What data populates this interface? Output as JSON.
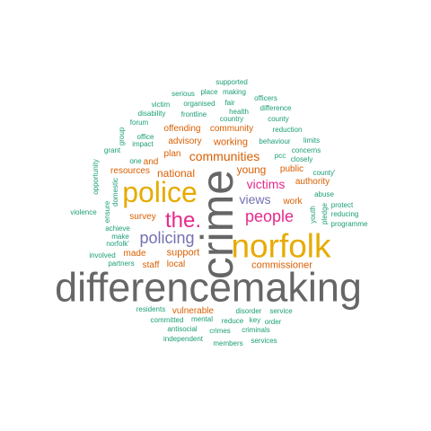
{
  "words": [
    {
      "text": "differencemaking",
      "color": "#666666"
    },
    {
      "text": "crime",
      "color": "#666666"
    },
    {
      "text": "norfolk",
      "color": "#e6ab02"
    },
    {
      "text": "police",
      "color": "#e6ab02"
    },
    {
      "text": "the.",
      "color": "#e7298a"
    },
    {
      "text": "people",
      "color": "#e7298a"
    },
    {
      "text": "policing",
      "color": "#7570b3"
    },
    {
      "text": "victims",
      "color": "#e7298a"
    },
    {
      "text": "communities",
      "color": "#d95f02"
    },
    {
      "text": "views",
      "color": "#7570b3"
    },
    {
      "text": "young",
      "color": "#d95f02"
    },
    {
      "text": "national",
      "color": "#d95f02"
    },
    {
      "text": "commissioner",
      "color": "#d95f02"
    },
    {
      "text": "support",
      "color": "#d95f02"
    },
    {
      "text": "working",
      "color": "#d95f02"
    },
    {
      "text": "public",
      "color": "#d95f02"
    },
    {
      "text": "work",
      "color": "#d95f02"
    },
    {
      "text": "vulnerable",
      "color": "#d95f02"
    },
    {
      "text": "community",
      "color": "#d95f02"
    },
    {
      "text": "offending",
      "color": "#d95f02"
    },
    {
      "text": "advisory",
      "color": "#d95f02"
    },
    {
      "text": "plan",
      "color": "#d95f02"
    },
    {
      "text": "and",
      "color": "#d95f02"
    },
    {
      "text": "survey",
      "color": "#d95f02"
    },
    {
      "text": "made",
      "color": "#d95f02"
    },
    {
      "text": "local",
      "color": "#d95f02"
    },
    {
      "text": "staff",
      "color": "#d95f02"
    },
    {
      "text": "resources",
      "color": "#d95f02"
    },
    {
      "text": "authority",
      "color": "#d95f02"
    },
    {
      "text": "pcc",
      "color": "#1b9e77"
    },
    {
      "text": "closely",
      "color": "#1b9e77"
    },
    {
      "text": "behaviour",
      "color": "#1b9e77"
    },
    {
      "text": "limits",
      "color": "#1b9e77"
    },
    {
      "text": "concerns",
      "color": "#1b9e77"
    },
    {
      "text": "county",
      "color": "#1b9e77"
    },
    {
      "text": "reduction",
      "color": "#1b9e77"
    },
    {
      "text": "difference",
      "color": "#1b9e77"
    },
    {
      "text": "officers",
      "color": "#1b9e77"
    },
    {
      "text": "supported",
      "color": "#1b9e77"
    },
    {
      "text": "place",
      "color": "#1b9e77"
    },
    {
      "text": "making",
      "color": "#1b9e77"
    },
    {
      "text": "serious",
      "color": "#1b9e77"
    },
    {
      "text": "victim",
      "color": "#1b9e77"
    },
    {
      "text": "organised",
      "color": "#1b9e77"
    },
    {
      "text": "fair",
      "color": "#1b9e77"
    },
    {
      "text": "health",
      "color": "#1b9e77"
    },
    {
      "text": "disability",
      "color": "#1b9e77"
    },
    {
      "text": "office",
      "color": "#1b9e77"
    },
    {
      "text": "frontline",
      "color": "#1b9e77"
    },
    {
      "text": "country",
      "color": "#1b9e77"
    },
    {
      "text": "forum",
      "color": "#1b9e77"
    },
    {
      "text": "impact",
      "color": "#1b9e77"
    },
    {
      "text": "grant",
      "color": "#1b9e77"
    },
    {
      "text": "group",
      "color": "#1b9e77"
    },
    {
      "text": "one",
      "color": "#1b9e77"
    },
    {
      "text": "opportunity",
      "color": "#1b9e77"
    },
    {
      "text": "domestic",
      "color": "#1b9e77"
    },
    {
      "text": "violence",
      "color": "#1b9e77"
    },
    {
      "text": "ensure",
      "color": "#1b9e77"
    },
    {
      "text": "achieve",
      "color": "#1b9e77"
    },
    {
      "text": "make",
      "color": "#1b9e77"
    },
    {
      "text": "norfolk'",
      "color": "#1b9e77"
    },
    {
      "text": "involved",
      "color": "#1b9e77"
    },
    {
      "text": "partners",
      "color": "#1b9e77"
    },
    {
      "text": "county'",
      "color": "#1b9e77"
    },
    {
      "text": "abuse",
      "color": "#1b9e77"
    },
    {
      "text": "protect",
      "color": "#1b9e77"
    },
    {
      "text": "reducing",
      "color": "#1b9e77"
    },
    {
      "text": "programme",
      "color": "#1b9e77"
    },
    {
      "text": "youth",
      "color": "#1b9e77"
    },
    {
      "text": "pledge",
      "color": "#1b9e77"
    },
    {
      "text": "residents",
      "color": "#1b9e77"
    },
    {
      "text": "committed",
      "color": "#1b9e77"
    },
    {
      "text": "mental",
      "color": "#1b9e77"
    },
    {
      "text": "disorder",
      "color": "#1b9e77"
    },
    {
      "text": "service",
      "color": "#1b9e77"
    },
    {
      "text": "reduce",
      "color": "#1b9e77"
    },
    {
      "text": "key",
      "color": "#1b9e77"
    },
    {
      "text": "order",
      "color": "#1b9e77"
    },
    {
      "text": "antisocial",
      "color": "#1b9e77"
    },
    {
      "text": "crimes",
      "color": "#1b9e77"
    },
    {
      "text": "criminals",
      "color": "#1b9e77"
    },
    {
      "text": "independent",
      "color": "#1b9e77"
    },
    {
      "text": "members",
      "color": "#1b9e77"
    },
    {
      "text": "services",
      "color": "#1b9e77"
    }
  ]
}
